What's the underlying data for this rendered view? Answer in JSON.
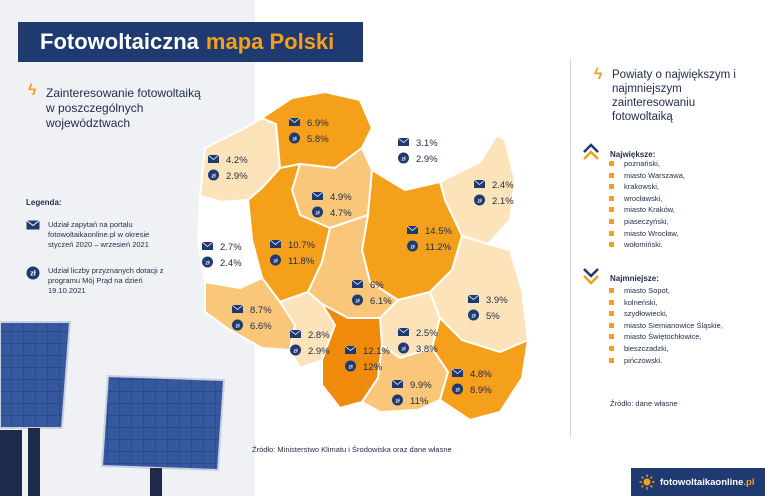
{
  "header": {
    "title_part1": "Fotowoltaiczna",
    "title_part2": "mapa Polski"
  },
  "intro": {
    "text": "Zainteresowanie fotowoltaiką w poszczególnych województwach"
  },
  "legend": {
    "title": "Legenda:",
    "items": [
      {
        "icon": "envelope-icon",
        "text": "Udział zapytań na portalu fotowoltaikaonline.pl w okresie styczeń 2020 – wrzesień 2021"
      },
      {
        "icon": "zloty-coin-icon",
        "text": "Udział liczby przyznanych dotacji z programu Mój Prąd na dzień 19.10.2021"
      }
    ]
  },
  "map": {
    "regions": [
      {
        "name": "pomorskie",
        "inquiries": "6.9%",
        "subsidies": "5.8%"
      },
      {
        "name": "warmińsko-mazurskie",
        "inquiries": "3.1%",
        "subsidies": "2.9%"
      },
      {
        "name": "zachodniopomorskie",
        "inquiries": "4.2%",
        "subsidies": "2.9%"
      },
      {
        "name": "podlaskie",
        "inquiries": "2.4%",
        "subsidies": "2.1%"
      },
      {
        "name": "kujawsko-pomorskie",
        "inquiries": "4.9%",
        "subsidies": "4.7%"
      },
      {
        "name": "mazowieckie",
        "inquiries": "14.5%",
        "subsidies": "11.2%"
      },
      {
        "name": "wielkopolskie",
        "inquiries": "10.7%",
        "subsidies": "11.8%"
      },
      {
        "name": "lubuskie",
        "inquiries": "2.7%",
        "subsidies": "2.4%"
      },
      {
        "name": "łódzkie",
        "inquiries": "6%",
        "subsidies": "6.1%"
      },
      {
        "name": "lubelskie",
        "inquiries": "3.9%",
        "subsidies": "5%"
      },
      {
        "name": "dolnośląskie",
        "inquiries": "8.7%",
        "subsidies": "6.6%"
      },
      {
        "name": "opolskie",
        "inquiries": "2.8%",
        "subsidies": "2.9%"
      },
      {
        "name": "świętokrzyskie",
        "inquiries": "2.5%",
        "subsidies": "3.8%"
      },
      {
        "name": "śląskie",
        "inquiries": "12.1%",
        "subsidies": "12%"
      },
      {
        "name": "małopolskie",
        "inquiries": "9.9%",
        "subsidies": "11%"
      },
      {
        "name": "podkarpackie",
        "inquiries": "4.8%",
        "subsidies": "8.9%"
      }
    ],
    "source": "Źródło: Ministerstwo Klimatu i Środowiska oraz dane własne"
  },
  "right_panel": {
    "title": "Powiaty o największym i najmniejszym zainteresowaniu fotowoltaiką",
    "largest_label": "Największe:",
    "largest": [
      "poznański,",
      "miasto Warszawa,",
      "krakowski,",
      "wrocławski,",
      "miasto Kraków,",
      "piaseczyński,",
      "miasto Wrocław,",
      "wołomiński."
    ],
    "smallest_label": "Najmniejsze:",
    "smallest": [
      "miasto Sopot,",
      "kolneński,",
      "szydłowiecki,",
      "miasto Siemianowice Śląskie,",
      "miasto Świętochłowice,",
      "bieszczadzki,",
      "pińczowski."
    ],
    "source": "Źródło: dane własne"
  },
  "footer": {
    "brand": "fotowoltaikaonline",
    "tld": ".pl"
  },
  "colors": {
    "navy": "#1f3a70",
    "orange": "#f5a01a",
    "light": "#fde3b9",
    "medium": "#f9c67a",
    "strong": "#f5a01a",
    "darkest": "#ef8a0c"
  }
}
